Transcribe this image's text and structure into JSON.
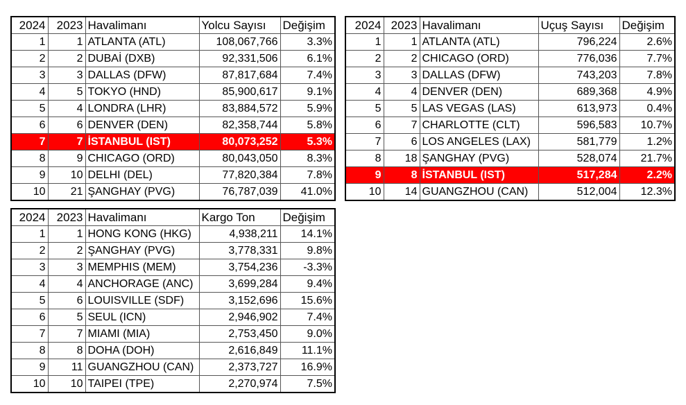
{
  "passengers": {
    "headers": [
      "2024",
      "2023",
      "Havalimanı",
      "Yolcu Sayısı",
      "Değişim"
    ],
    "rows": [
      [
        "1",
        "1",
        "ATLANTA (ATL)",
        "108,067,766",
        "3.3%"
      ],
      [
        "2",
        "2",
        "DUBAİ (DXB)",
        "92,331,506",
        "6.1%"
      ],
      [
        "3",
        "3",
        "DALLAS (DFW)",
        "87,817,684",
        "7.4%"
      ],
      [
        "4",
        "5",
        "TOKYO (HND)",
        "85,900,617",
        "9.1%"
      ],
      [
        "5",
        "4",
        "LONDRA (LHR)",
        "83,884,572",
        "5.9%"
      ],
      [
        "6",
        "6",
        "DENVER (DEN)",
        "82,358,744",
        "5.8%"
      ],
      [
        "7",
        "7",
        "İSTANBUL (IST)",
        "80,073,252",
        "5.3%"
      ],
      [
        "8",
        "9",
        "CHICAGO (ORD)",
        "80,043,050",
        "8.3%"
      ],
      [
        "9",
        "10",
        "DELHI (DEL)",
        "77,820,384",
        "7.8%"
      ],
      [
        "10",
        "21",
        "ŞANGHAY (PVG)",
        "76,787,039",
        "41.0%"
      ]
    ],
    "highlight_row": 6
  },
  "flights": {
    "headers": [
      "2024",
      "2023",
      "Havalimanı",
      "Uçuş Sayısı",
      "Değişim"
    ],
    "rows": [
      [
        "1",
        "1",
        "ATLANTA (ATL)",
        "796,224",
        "2.6%"
      ],
      [
        "2",
        "2",
        "CHICAGO (ORD)",
        "776,036",
        "7.7%"
      ],
      [
        "3",
        "3",
        "DALLAS (DFW)",
        "743,203",
        "7.8%"
      ],
      [
        "4",
        "4",
        "DENVER (DEN)",
        "689,368",
        "4.9%"
      ],
      [
        "5",
        "5",
        "LAS VEGAS (LAS)",
        "613,973",
        "0.4%"
      ],
      [
        "6",
        "7",
        "CHARLOTTE (CLT)",
        "596,583",
        "10.7%"
      ],
      [
        "7",
        "6",
        "LOS ANGELES (LAX)",
        "581,779",
        "1.2%"
      ],
      [
        "8",
        "18",
        "ŞANGHAY (PVG)",
        "528,074",
        "21.7%"
      ],
      [
        "9",
        "8",
        "İSTANBUL (IST)",
        "517,284",
        "2.2%"
      ],
      [
        "10",
        "14",
        "GUANGZHOU (CAN)",
        "512,004",
        "12.3%"
      ]
    ],
    "highlight_row": 8
  },
  "cargo": {
    "headers": [
      "2024",
      "2023",
      "Havalimanı",
      "Kargo Ton",
      "Değişim"
    ],
    "rows": [
      [
        "1",
        "1",
        "HONG KONG (HKG)",
        "4,938,211",
        "14.1%"
      ],
      [
        "2",
        "2",
        "ŞANGHAY (PVG)",
        "3,778,331",
        "9.8%"
      ],
      [
        "3",
        "3",
        "MEMPHIS (MEM)",
        "3,754,236",
        "-3.3%"
      ],
      [
        "4",
        "4",
        "ANCHORAGE (ANC)",
        "3,699,284",
        "9.4%"
      ],
      [
        "5",
        "6",
        "LOUISVILLE (SDF)",
        "3,152,696",
        "15.6%"
      ],
      [
        "6",
        "5",
        "SEUL (ICN)",
        "2,946,902",
        "7.4%"
      ],
      [
        "7",
        "7",
        "MIAMI (MIA)",
        "2,753,450",
        "9.0%"
      ],
      [
        "8",
        "8",
        "DOHA (DOH)",
        "2,616,849",
        "11.1%"
      ],
      [
        "9",
        "11",
        "GUANGZHOU (CAN)",
        "2,373,727",
        "16.9%"
      ],
      [
        "10",
        "10",
        "TAIPEI (TPE)",
        "2,270,974",
        "7.5%"
      ]
    ],
    "highlight_row": -1
  },
  "colors": {
    "highlight_bg": "#ff0000",
    "highlight_text": "#ffffff"
  }
}
